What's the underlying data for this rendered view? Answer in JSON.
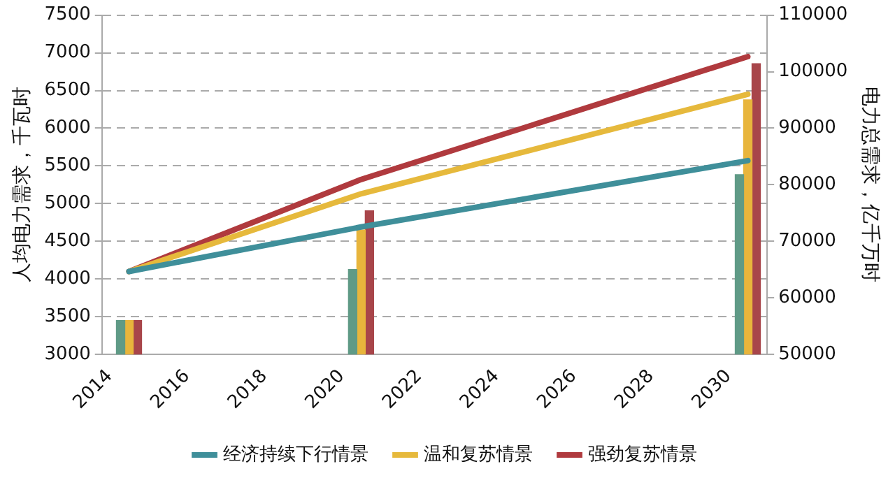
{
  "chart_data": {
    "type": "line",
    "ylabel": "人均电力需求，千瓦时",
    "y2label": "电力总需求，亿千万时",
    "x": [
      2014.5,
      2020.5,
      2030.5
    ],
    "xlim": [
      2013.8,
      2031
    ],
    "xticks": [
      2014,
      2016,
      2018,
      2020,
      2022,
      2024,
      2026,
      2028,
      2030
    ],
    "ylim": [
      3000,
      7500
    ],
    "yticks": [
      3000,
      3500,
      4000,
      4500,
      5000,
      5500,
      6000,
      6500,
      7000,
      7500
    ],
    "y2lim": [
      50000,
      110000
    ],
    "y2ticks": [
      50000,
      60000,
      70000,
      80000,
      90000,
      100000,
      110000
    ],
    "grid": "y",
    "legend": "bottom",
    "line_style": "solid",
    "marker": "none",
    "series": [
      {
        "type": "bar",
        "axis": "y2",
        "color": "#5f9a86",
        "values": [
          56000,
          65000,
          81800
        ]
      },
      {
        "type": "bar",
        "axis": "y2",
        "color": "#e8b53c",
        "values": [
          56000,
          72000,
          95000
        ]
      },
      {
        "type": "bar",
        "axis": "y2",
        "color": "#a8454a",
        "values": [
          56000,
          75400,
          101400
        ]
      },
      {
        "name": "经济持续下行情景",
        "color": "#3f8f9a",
        "values": [
          4100,
          4690,
          5570
        ]
      },
      {
        "name": "温和复苏情景",
        "color": "#e6b93c",
        "values": [
          4100,
          5130,
          6450
        ]
      },
      {
        "name": "强劲复苏情景",
        "color": "#b03a3e",
        "values": [
          4100,
          5320,
          6950
        ]
      }
    ]
  }
}
